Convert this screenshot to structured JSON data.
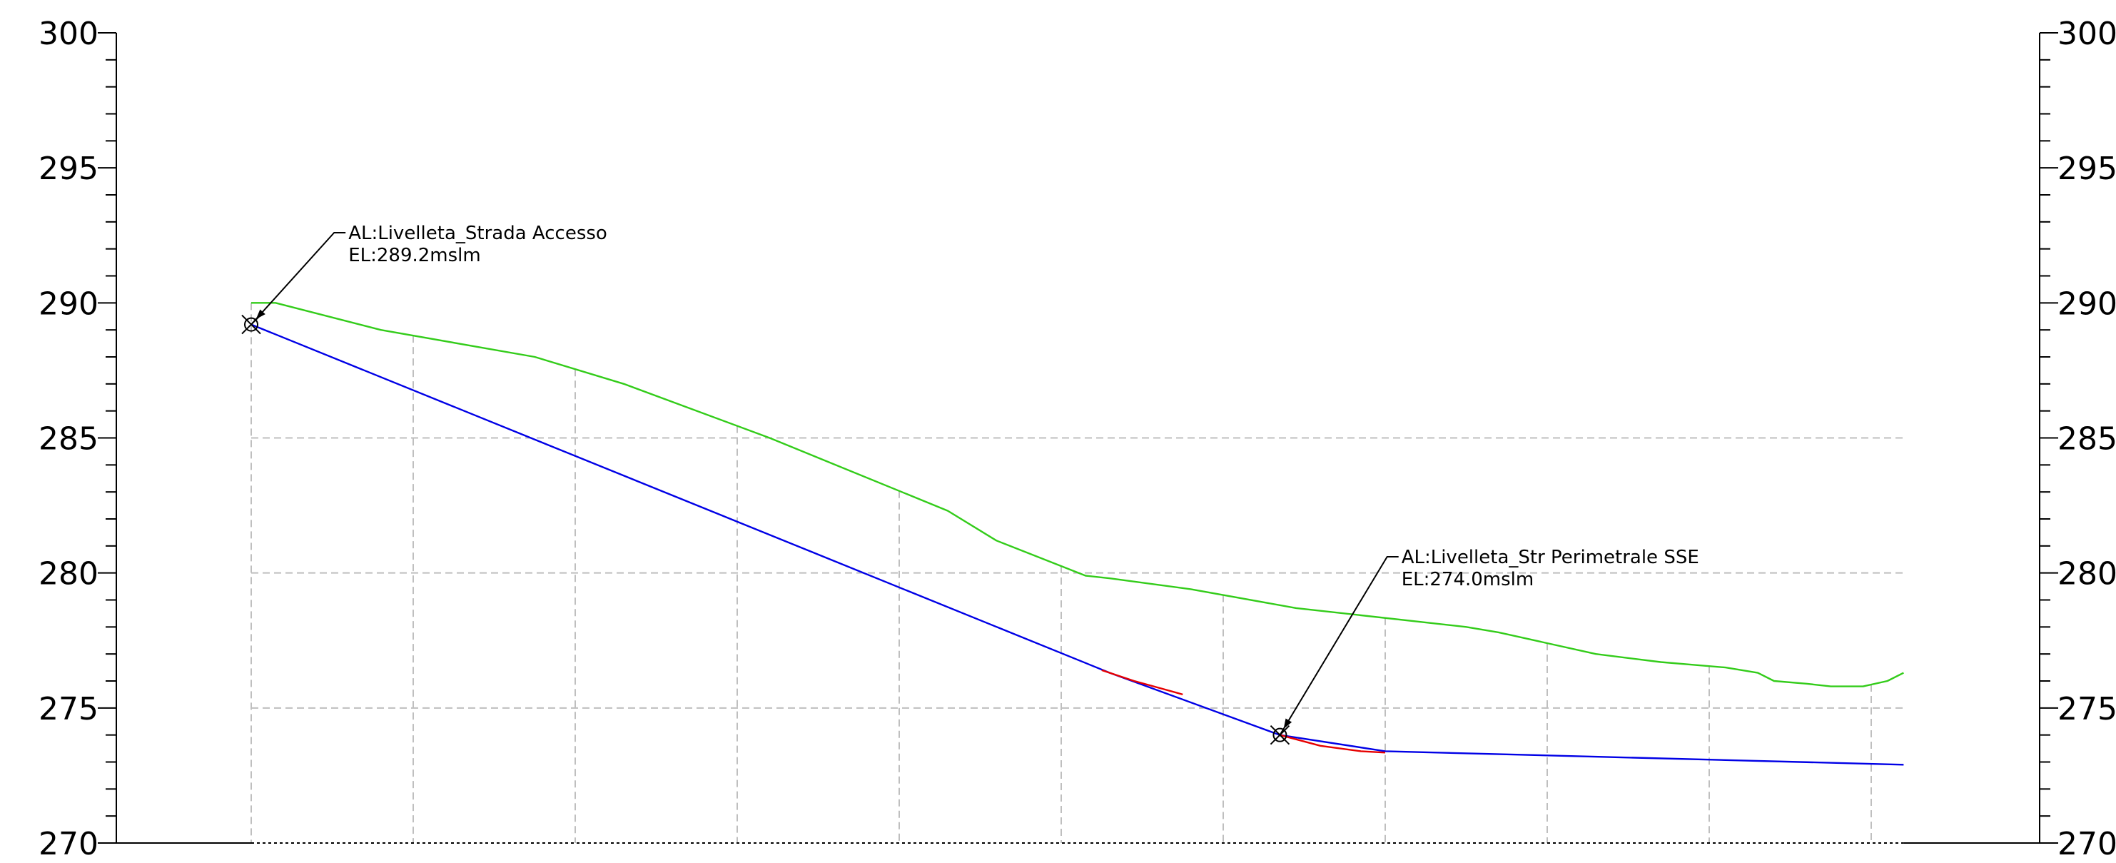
{
  "chart_data": {
    "type": "line",
    "title": "",
    "xlabel": "",
    "ylabel": "",
    "ylim": [
      270,
      300
    ],
    "yticks_major": [
      270,
      275,
      280,
      285,
      290,
      295,
      300
    ],
    "ytick_labels": [
      "270",
      "275",
      "280",
      "285",
      "290",
      "295",
      "300"
    ],
    "ytick_minor_step": 1,
    "grid": true,
    "grid_rows": [
      275,
      280,
      285
    ],
    "grid_columns": [
      0,
      1,
      2,
      3,
      4,
      5,
      6,
      7,
      8,
      9,
      10
    ],
    "xlim": [
      0,
      10.2
    ],
    "colors": {
      "ground": "#33cc1a",
      "alignment": "#0000e6",
      "curve": "#e60000",
      "grid": "#bfbfbf",
      "axis": "#000000"
    },
    "series": [
      {
        "key": "ground",
        "x": [
          0,
          0.15,
          0.8,
          1.75,
          2.3,
          3.2,
          4.3,
          4.6,
          5.15,
          5.3,
          5.8,
          6.45,
          7.5,
          7.7,
          8.3,
          8.7,
          8.9,
          9.1,
          9.3,
          9.4,
          9.6,
          9.75,
          9.95,
          10.1,
          10.2
        ],
        "y": [
          290.0,
          290.0,
          289.0,
          288.0,
          287.0,
          285.0,
          282.3,
          281.2,
          279.9,
          279.8,
          279.4,
          278.7,
          278.0,
          277.8,
          277.0,
          276.7,
          276.6,
          276.5,
          276.3,
          276.0,
          275.9,
          275.8,
          275.8,
          276.0,
          276.3
        ]
      },
      {
        "key": "alignment",
        "x": [
          0,
          5.3,
          6.35,
          7.0,
          10.2
        ],
        "y": [
          289.2,
          276.3,
          274.0,
          273.4,
          272.9
        ]
      },
      {
        "key": "curve-1",
        "x": [
          5.25,
          5.45,
          5.75
        ],
        "y": [
          276.4,
          276.0,
          275.5
        ]
      },
      {
        "key": "curve-2",
        "x": [
          6.35,
          6.6,
          6.85,
          7.0
        ],
        "y": [
          274.0,
          273.6,
          273.4,
          273.35
        ]
      }
    ],
    "markers": [
      {
        "x": 0,
        "y": 289.2
      },
      {
        "x": 6.35,
        "y": 274.0
      }
    ],
    "annotations": [
      {
        "line1": "AL:Livelleta_Strada Accesso",
        "line2": "EL:289.2mslm",
        "anchor_x": 0,
        "anchor_y": 289.2,
        "label_x": 0.6,
        "label_y": 292.6
      },
      {
        "line1": "AL:Livelleta_Str Perimetrale SSE",
        "line2": "EL:274.0mslm",
        "anchor_x": 6.35,
        "anchor_y": 274.0,
        "label_x": 7.1,
        "label_y": 280.6
      }
    ]
  }
}
